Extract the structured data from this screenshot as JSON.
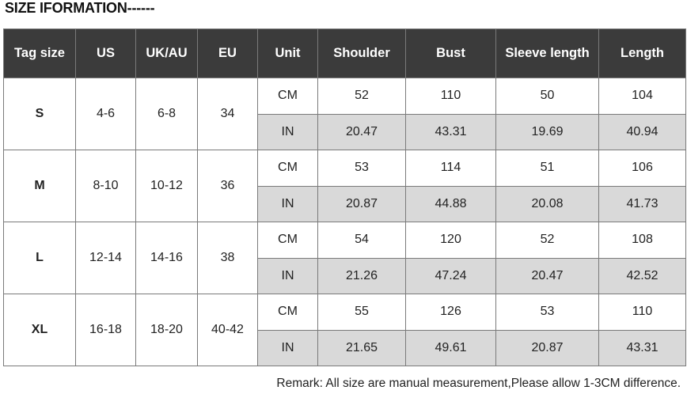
{
  "title": "SIZE IFORMATION------",
  "table": {
    "headers": [
      "Tag size",
      "US",
      "UK/AU",
      "EU",
      "Unit",
      "Shoulder",
      "Bust",
      "Sleeve length",
      "Length"
    ],
    "sizes": [
      {
        "tag": "S",
        "us": "4-6",
        "ukau": "6-8",
        "eu": "34",
        "cm": {
          "unit": "CM",
          "values": [
            "52",
            "110",
            "50",
            "104"
          ]
        },
        "in": {
          "unit": "IN",
          "values": [
            "20.47",
            "43.31",
            "19.69",
            "40.94"
          ]
        }
      },
      {
        "tag": "M",
        "us": "8-10",
        "ukau": "10-12",
        "eu": "36",
        "cm": {
          "unit": "CM",
          "values": [
            "53",
            "114",
            "51",
            "106"
          ]
        },
        "in": {
          "unit": "IN",
          "values": [
            "20.87",
            "44.88",
            "20.08",
            "41.73"
          ]
        }
      },
      {
        "tag": "L",
        "us": "12-14",
        "ukau": "14-16",
        "eu": "38",
        "cm": {
          "unit": "CM",
          "values": [
            "54",
            "120",
            "52",
            "108"
          ]
        },
        "in": {
          "unit": "IN",
          "values": [
            "21.26",
            "47.24",
            "20.47",
            "42.52"
          ]
        }
      },
      {
        "tag": "XL",
        "us": "16-18",
        "ukau": "18-20",
        "eu": "40-42",
        "cm": {
          "unit": "CM",
          "values": [
            "55",
            "126",
            "53",
            "110"
          ]
        },
        "in": {
          "unit": "IN",
          "values": [
            "21.65",
            "49.61",
            "20.87",
            "43.31"
          ]
        }
      }
    ]
  },
  "remark": "Remark: All size are manual measurement,Please allow 1-3CM difference.",
  "colors": {
    "header_bg": "#3b3b3b",
    "header_text": "#ffffff",
    "in_row_bg": "#d9d9d9",
    "border": "#7a7a7a"
  }
}
